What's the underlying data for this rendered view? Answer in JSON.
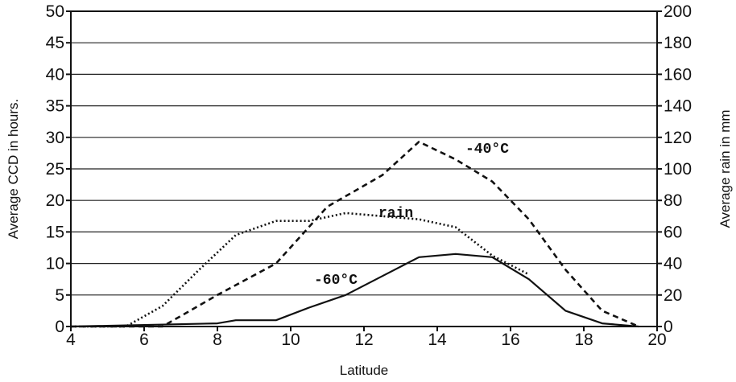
{
  "chart_data": {
    "type": "line",
    "title": "",
    "xlabel": "Latitude",
    "ylabel_left": "Average CCD in hours.",
    "ylabel_right": "Average rain in mm",
    "xlim": [
      4,
      20
    ],
    "ylim_left": [
      0,
      50
    ],
    "ylim_right": [
      0,
      200
    ],
    "grid": true,
    "x_ticks": [
      "4",
      "6",
      "8",
      "10",
      "12",
      "14",
      "16",
      "18",
      "20"
    ],
    "y_left_ticks": [
      "0",
      "5",
      "10",
      "15",
      "20",
      "25",
      "30",
      "35",
      "40",
      "45",
      "50"
    ],
    "y_right_ticks": [
      "0",
      "20",
      "40",
      "60",
      "80",
      "100",
      "120",
      "140",
      "160",
      "180",
      "200"
    ],
    "series": [
      {
        "name": "-40°C",
        "axis": "left",
        "style": "dashed",
        "x": [
          4,
          6.5,
          8,
          9.6,
          11,
          12.5,
          13.5,
          14.5,
          15.5,
          16.5,
          17.5,
          18.5,
          19.5
        ],
        "values": [
          0,
          0,
          5,
          10,
          19,
          24,
          29.3,
          26.5,
          23,
          17,
          9,
          2.5,
          0
        ]
      },
      {
        "name": "-60°C",
        "axis": "left",
        "style": "solid",
        "x": [
          4,
          8,
          8.5,
          9.6,
          10.5,
          11.5,
          12.5,
          13.5,
          14.5,
          15.5,
          16.5,
          17.5,
          18.5,
          19.5
        ],
        "values": [
          0,
          0.5,
          1,
          1,
          3,
          5,
          8,
          11,
          11.5,
          11,
          7.5,
          2.5,
          0.5,
          0
        ]
      },
      {
        "name": "rain",
        "axis": "right",
        "style": "dotted",
        "x": [
          4,
          5.5,
          6.5,
          7.5,
          8.5,
          9.6,
          10.5,
          11.5,
          12.5,
          13.5,
          14.5,
          15.5,
          16.5
        ],
        "values": [
          0,
          0,
          13,
          36,
          58,
          67,
          67,
          72,
          70,
          68,
          63,
          45,
          33
        ]
      }
    ],
    "labels": [
      "-40°C",
      "rain",
      "-60°C"
    ]
  }
}
